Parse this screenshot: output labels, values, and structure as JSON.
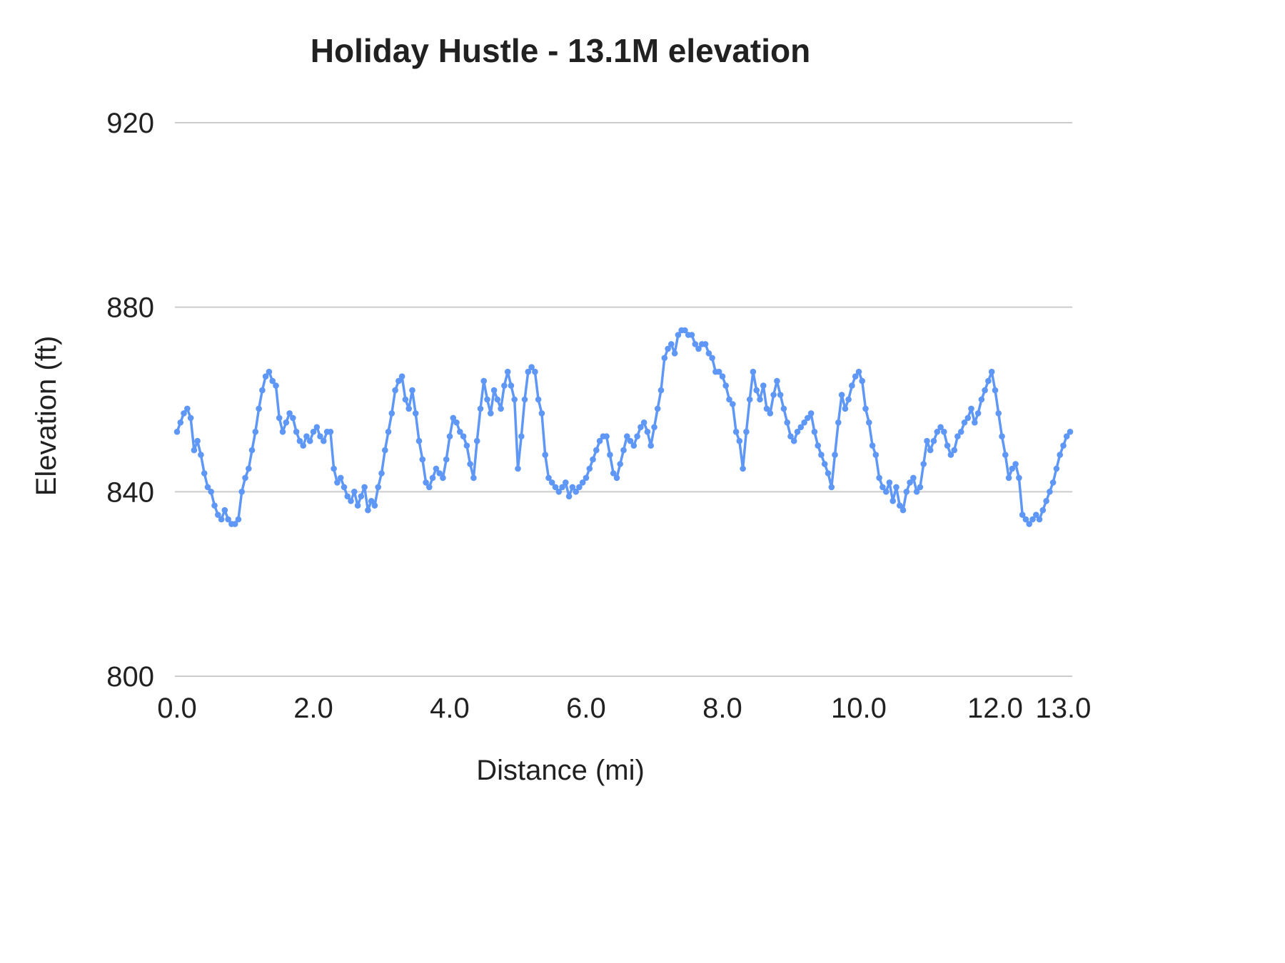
{
  "page": {
    "background_color": "#ffffff"
  },
  "chart_data": {
    "type": "line",
    "title": "Holiday Hustle - 13.1M elevation",
    "xlabel": "Distance (mi)",
    "ylabel": "Elevation (ft)",
    "xlim": [
      0,
      13.1
    ],
    "ylim": [
      800,
      920
    ],
    "x_ticks": [
      0,
      2,
      4,
      6,
      8,
      10,
      12,
      13
    ],
    "x_tick_labels": [
      "0.0",
      "2.0",
      "4.0",
      "6.0",
      "8.0",
      "10.0",
      "12.0",
      "13.0"
    ],
    "y_ticks": [
      800,
      840,
      880,
      920
    ],
    "y_tick_labels": [
      "800",
      "840",
      "880",
      "920"
    ],
    "grid": true,
    "legend_position": "none",
    "series_name": "Elevation",
    "line_color": "#5e97f6",
    "grid_color": "#cccccc",
    "text_color": "#212121",
    "marker": "circle",
    "x_start": 0,
    "x_step": 0.05,
    "values": [
      853,
      855,
      857,
      858,
      856,
      849,
      851,
      848,
      844,
      841,
      840,
      837,
      835,
      834,
      836,
      834,
      833,
      833,
      834,
      840,
      843,
      845,
      849,
      853,
      858,
      862,
      865,
      866,
      864,
      863,
      856,
      853,
      855,
      857,
      856,
      853,
      851,
      850,
      852,
      851,
      853,
      854,
      852,
      851,
      853,
      853,
      845,
      842,
      843,
      841,
      839,
      838,
      840,
      837,
      839,
      841,
      836,
      838,
      837,
      841,
      844,
      849,
      853,
      857,
      862,
      864,
      865,
      860,
      858,
      862,
      857,
      851,
      847,
      842,
      841,
      843,
      845,
      844,
      843,
      847,
      852,
      856,
      855,
      853,
      852,
      850,
      846,
      843,
      851,
      858,
      864,
      860,
      857,
      862,
      860,
      858,
      863,
      866,
      863,
      860,
      845,
      852,
      860,
      866,
      867,
      866,
      860,
      857,
      848,
      843,
      842,
      841,
      840,
      841,
      842,
      839,
      841,
      840,
      841,
      842,
      843,
      845,
      847,
      849,
      851,
      852,
      852,
      848,
      844,
      843,
      846,
      849,
      852,
      851,
      850,
      852,
      854,
      855,
      853,
      850,
      854,
      858,
      862,
      869,
      871,
      872,
      870,
      874,
      875,
      875,
      874,
      874,
      872,
      871,
      872,
      872,
      870,
      869,
      866,
      866,
      865,
      863,
      860,
      859,
      853,
      851,
      845,
      853,
      860,
      866,
      862,
      860,
      863,
      858,
      857,
      861,
      864,
      861,
      858,
      855,
      852,
      851,
      853,
      854,
      855,
      856,
      857,
      853,
      850,
      848,
      846,
      844,
      841,
      848,
      855,
      861,
      858,
      860,
      863,
      865,
      866,
      864,
      858,
      855,
      850,
      848,
      843,
      841,
      840,
      842,
      838,
      841,
      837,
      836,
      840,
      842,
      843,
      840,
      841,
      846,
      851,
      849,
      851,
      853,
      854,
      853,
      850,
      848,
      849,
      852,
      853,
      855,
      856,
      858,
      855,
      857,
      860,
      862,
      864,
      866,
      862,
      857,
      852,
      848,
      843,
      845,
      846,
      843,
      835,
      834,
      833,
      834,
      835,
      834,
      836,
      838,
      840,
      842,
      845,
      848,
      850,
      852,
      853
    ]
  }
}
